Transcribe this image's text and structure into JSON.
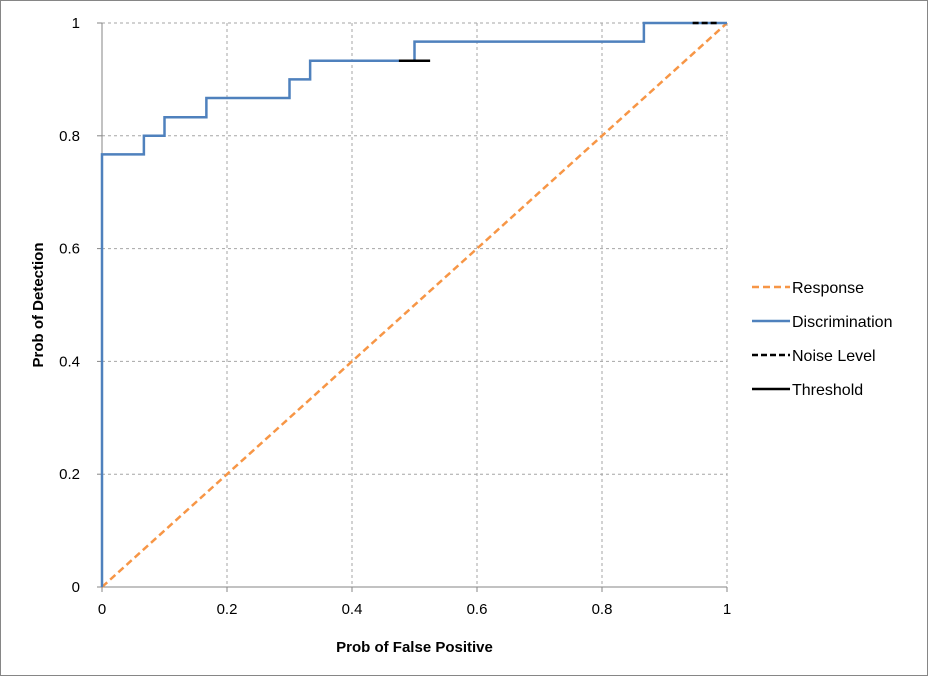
{
  "chart_data": {
    "type": "line",
    "title": "",
    "xlabel": "Prob of False Positive",
    "ylabel": "Prob of Detection",
    "xlim": [
      0,
      1
    ],
    "ylim": [
      0,
      1
    ],
    "x_ticks": [
      0,
      0.2,
      0.4,
      0.6,
      0.8,
      1
    ],
    "x_tick_labels": [
      "0",
      "0.2",
      "0.4",
      "0.6",
      "0.8",
      "1"
    ],
    "y_ticks": [
      0,
      0.2,
      0.4,
      0.6,
      0.8,
      1
    ],
    "y_tick_labels": [
      "0",
      "0.2",
      "0.4",
      "0.6",
      "0.8",
      "1"
    ],
    "grid": true,
    "legend_position": "right",
    "series": [
      {
        "name": "Response",
        "color": "#F79646",
        "style": "dashed",
        "x": [
          0,
          1
        ],
        "y": [
          0,
          1
        ]
      },
      {
        "name": "Discrimination",
        "color": "#4F81BD",
        "style": "solid",
        "step": true,
        "x": [
          0,
          0,
          0.067,
          0.067,
          0.1,
          0.1,
          0.167,
          0.167,
          0.3,
          0.3,
          0.333,
          0.333,
          0.5,
          0.5,
          0.867,
          0.867,
          1
        ],
        "y": [
          0,
          0.767,
          0.767,
          0.8,
          0.8,
          0.833,
          0.833,
          0.867,
          0.867,
          0.9,
          0.9,
          0.933,
          0.933,
          0.967,
          0.967,
          1,
          1
        ]
      },
      {
        "name": "Noise Level",
        "color": "#000000",
        "style": "dashed",
        "x": [
          0.945,
          0.985
        ],
        "y": [
          1,
          1
        ]
      },
      {
        "name": "Threshold",
        "color": "#000000",
        "style": "solid",
        "x": [
          0.475,
          0.525
        ],
        "y": [
          0.933,
          0.933
        ]
      }
    ]
  }
}
